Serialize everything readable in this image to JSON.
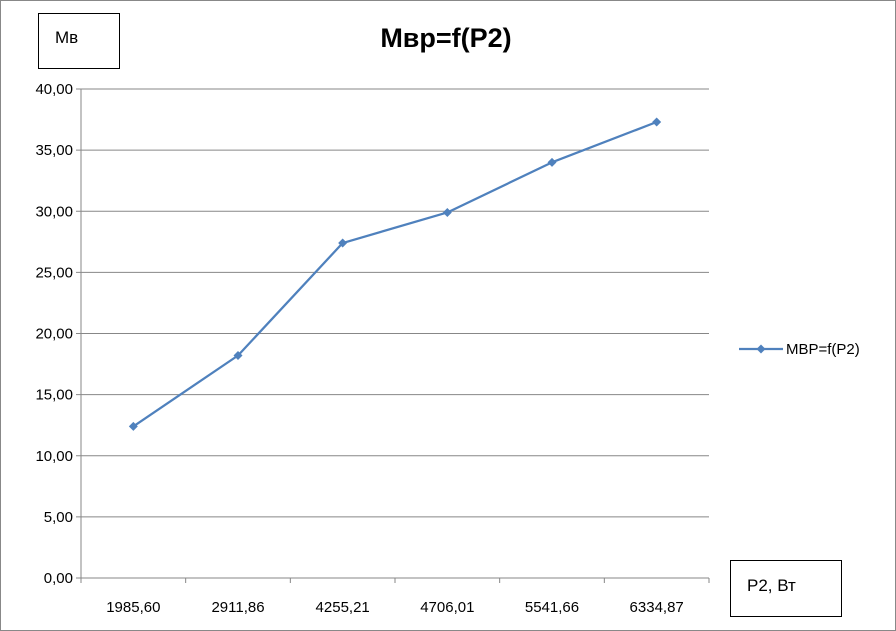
{
  "chart_data": {
    "type": "line",
    "title": "Мвр=f(P2)",
    "ylabel": "Мв",
    "xlabel": "P2, Вт",
    "categories": [
      "1985,60",
      "2911,86",
      "4255,21",
      "4706,01",
      "5541,66",
      "6334,87"
    ],
    "series": [
      {
        "name": "МВР=f(P2)",
        "values": [
          12.4,
          18.2,
          27.4,
          29.9,
          34.0,
          37.3
        ],
        "color": "#4f81bd",
        "marker": "diamond"
      }
    ],
    "ylim": [
      0,
      40
    ],
    "ytick_step": 5,
    "ytick_labels": [
      "0,00",
      "5,00",
      "10,00",
      "15,00",
      "20,00",
      "25,00",
      "30,00",
      "35,00",
      "40,00"
    ],
    "grid": true,
    "legend_position": "right"
  }
}
